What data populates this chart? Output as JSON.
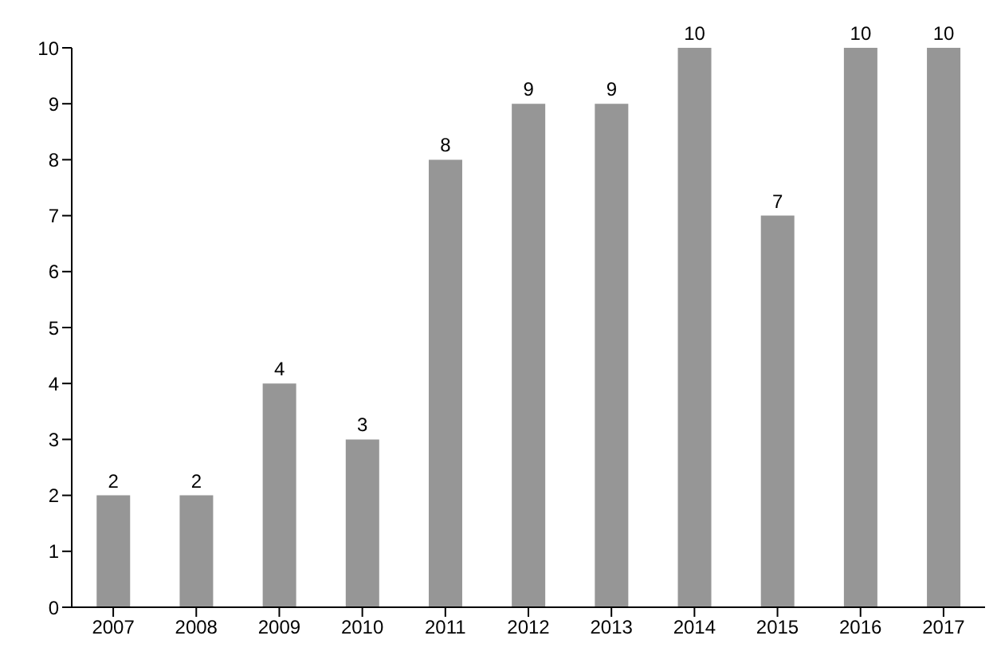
{
  "chart_data": {
    "type": "bar",
    "categories": [
      "2007",
      "2008",
      "2009",
      "2010",
      "2011",
      "2012",
      "2013",
      "2014",
      "2015",
      "2016",
      "2017"
    ],
    "values": [
      2,
      2,
      4,
      3,
      8,
      9,
      9,
      10,
      7,
      10,
      10
    ],
    "color": "#969696",
    "ylim": [
      0,
      10
    ],
    "yticks": [
      0,
      1,
      2,
      3,
      4,
      5,
      6,
      7,
      8,
      9,
      10
    ],
    "grid": false,
    "data_labels": true
  }
}
